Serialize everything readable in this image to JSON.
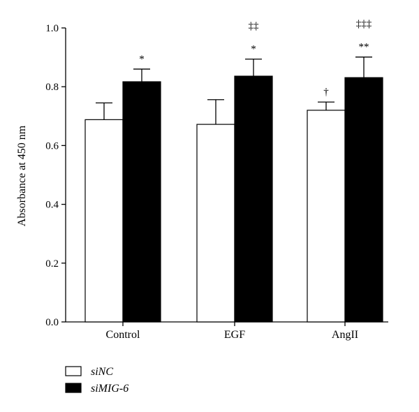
{
  "chart_data": {
    "type": "bar",
    "xlabel": "",
    "ylabel": "Absorbance at 450 nm",
    "ylim": [
      0,
      1.0
    ],
    "yticks": [
      "0.0",
      "0.2",
      "0.4",
      "0.6",
      "0.8",
      "1.0"
    ],
    "categories": [
      "Control",
      "EGF",
      "AngII"
    ],
    "series": [
      {
        "name": "siNC",
        "fill": "#ffffff",
        "values": [
          0.688,
          0.672,
          0.72
        ],
        "errors": [
          0.057,
          0.084,
          0.028
        ],
        "annotations": [
          "",
          "",
          "†"
        ]
      },
      {
        "name": "siMIG-6",
        "fill": "#000000",
        "values": [
          0.817,
          0.836,
          0.831
        ],
        "errors": [
          0.043,
          0.058,
          0.07
        ],
        "annotations": [
          "*",
          "*",
          "**"
        ],
        "annotations_top": [
          "",
          "‡‡",
          "‡‡‡"
        ]
      }
    ],
    "grid": false,
    "legend": "bottom-left"
  }
}
